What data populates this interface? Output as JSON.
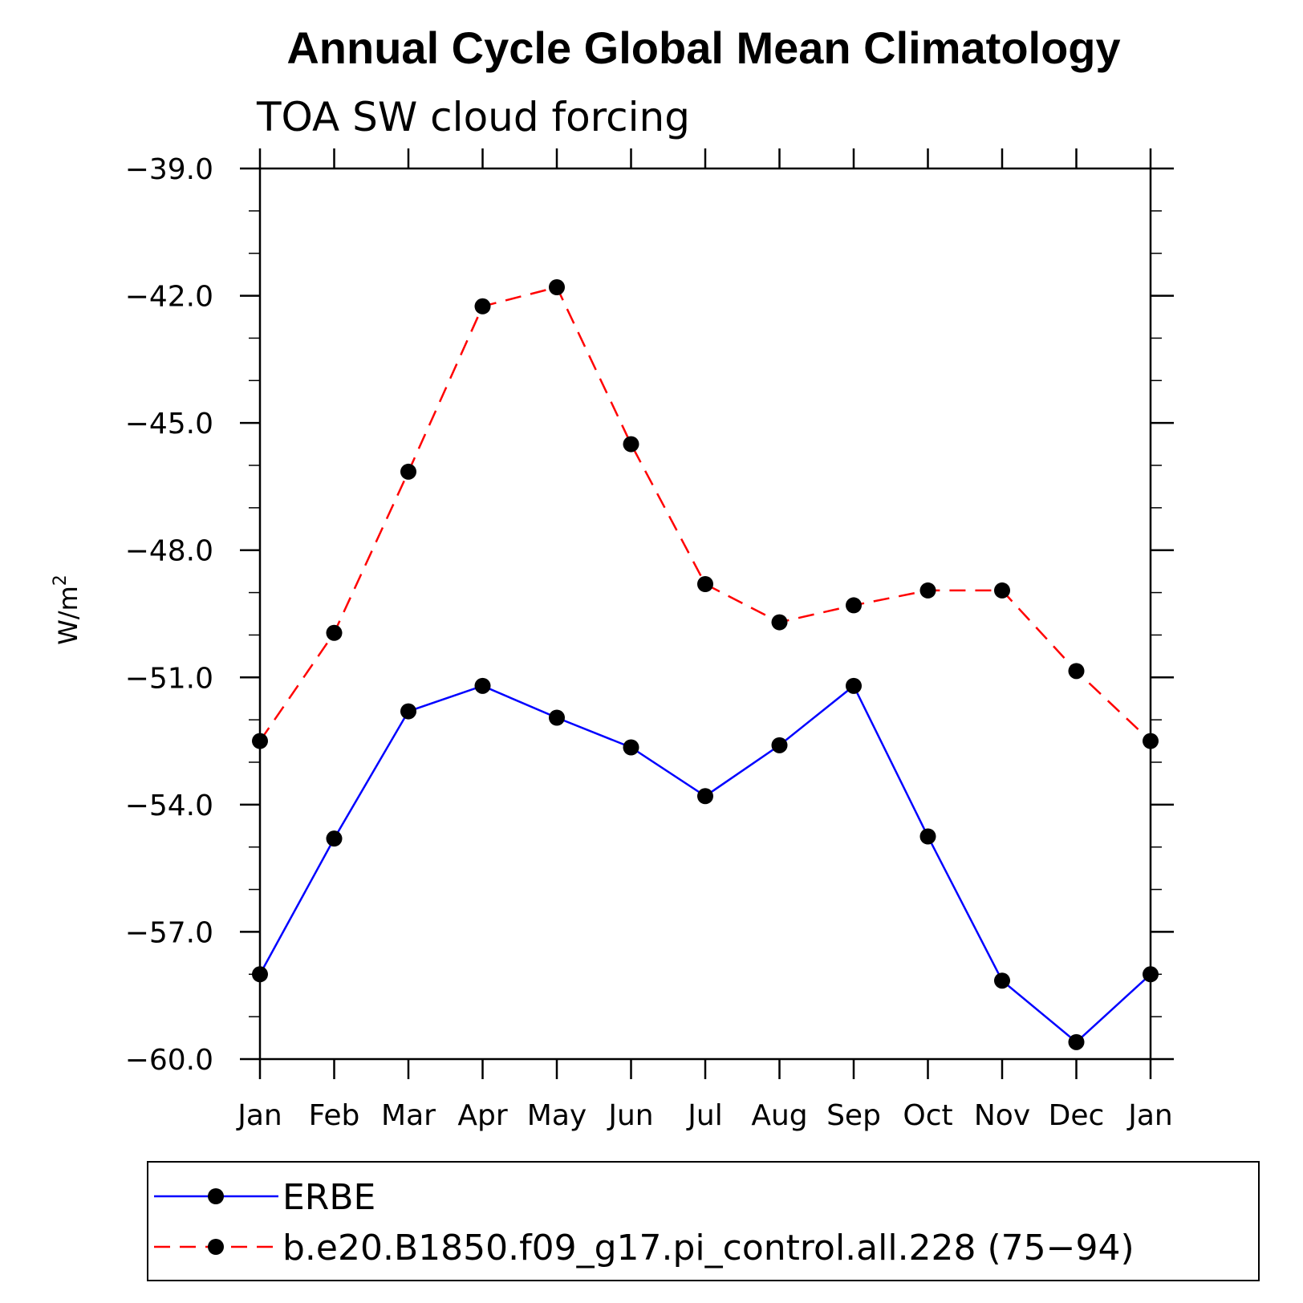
{
  "chart_data": {
    "type": "line",
    "title": "Annual Cycle Global Mean Climatology",
    "subtitle": "TOA SW cloud forcing",
    "ylabel_main": "W/m",
    "ylabel_sup": "2",
    "xlabel": "",
    "categories": [
      "Jan",
      "Feb",
      "Mar",
      "Apr",
      "May",
      "Jun",
      "Jul",
      "Aug",
      "Sep",
      "Oct",
      "Nov",
      "Dec",
      "Jan"
    ],
    "ylim": [
      -60,
      -39
    ],
    "yticks": [
      -39,
      -42,
      -45,
      -48,
      -51,
      -54,
      -57,
      -60
    ],
    "ytick_labels": [
      "−39.0",
      "−42.0",
      "−45.0",
      "−48.0",
      "−51.0",
      "−54.0",
      "−57.0",
      "−60.0"
    ],
    "grid": false,
    "legend_position": "bottom",
    "series": [
      {
        "name": "ERBE",
        "style": "solid",
        "color": "#0000ff",
        "values": [
          -58.0,
          -54.8,
          -51.8,
          -51.2,
          -51.95,
          -52.65,
          -53.8,
          -52.6,
          -51.2,
          -54.75,
          -58.15,
          -59.6,
          -58.0
        ]
      },
      {
        "name": "b.e20.B1850.f09_g17.pi_control.all.228 (75−94)",
        "style": "dashed",
        "color": "#ff0000",
        "values": [
          -52.5,
          -49.95,
          -46.15,
          -42.25,
          -41.8,
          -45.5,
          -48.8,
          -49.7,
          -49.3,
          -48.95,
          -48.95,
          -50.85,
          -52.5
        ]
      }
    ]
  }
}
